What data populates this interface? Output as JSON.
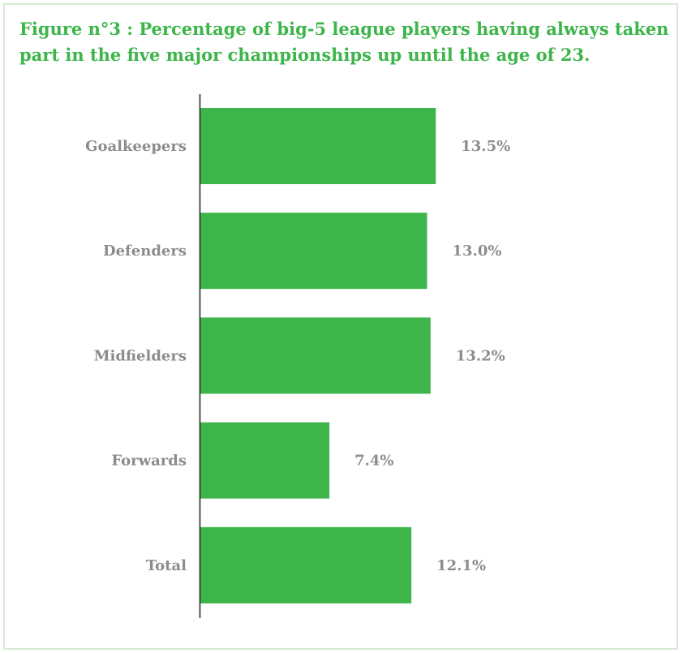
{
  "chart_data": {
    "type": "bar",
    "orientation": "horizontal",
    "title": "Figure n°3 : Percentage of big-5 league players having always taken part in the five major championships up until the age of 23.",
    "categories": [
      "Goalkeepers",
      "Defenders",
      "Midfielders",
      "Forwards",
      "Total"
    ],
    "values": [
      13.5,
      13.0,
      13.2,
      7.4,
      12.1
    ],
    "value_labels": [
      "13.5%",
      "13.0%",
      "13.2%",
      "7.4%",
      "12.1%"
    ],
    "xlim": [
      0,
      28
    ],
    "grid": false,
    "legend": "none",
    "bar_color": "#3db54a",
    "title_color": "#3db54a",
    "label_color": "#8c8c8c"
  }
}
